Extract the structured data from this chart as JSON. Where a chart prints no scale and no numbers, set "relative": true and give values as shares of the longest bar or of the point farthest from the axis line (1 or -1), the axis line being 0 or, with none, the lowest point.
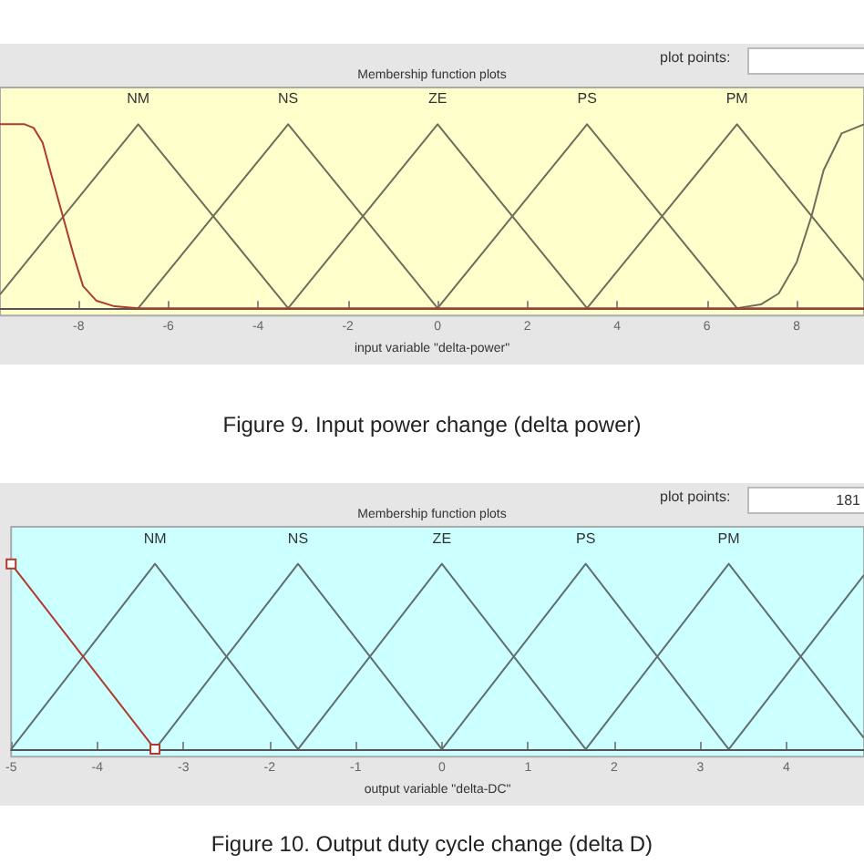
{
  "chart_data": [
    {
      "type": "line",
      "title": "Membership function plots",
      "xlabel": "input variable \"delta-power\"",
      "annotations": [
        "plot points:",
        "Figure 9. Input power change (delta power)"
      ],
      "relative": true,
      "xlim": [
        -9.75,
        9.5
      ],
      "xticks": [
        -8,
        -6,
        -4,
        -2,
        0,
        2,
        4,
        6,
        8
      ],
      "tick_labels": "x",
      "grid": false,
      "legend": false,
      "marker": "none",
      "line_style": "solid",
      "series": [
        {
          "color": "#b03a2e",
          "x": [
            -9.75,
            -9.2,
            -9,
            -8.8,
            -8.6,
            -8.35,
            -8.1,
            -7.9,
            -7.6,
            -7.2,
            -6.67,
            9.5
          ],
          "values": [
            1,
            1,
            0.98,
            0.9,
            0.72,
            0.5,
            0.28,
            0.12,
            0.04,
            0.01,
            0,
            0
          ]
        },
        {
          "name": "NM",
          "color": "#6e6e5c",
          "x": [
            -9.75,
            -6.67,
            -3.33
          ],
          "values": [
            0.075,
            1,
            0
          ]
        },
        {
          "name": "NS",
          "color": "#6e6e5c",
          "x": [
            -6.67,
            -3.33,
            0
          ],
          "values": [
            0,
            1,
            0
          ]
        },
        {
          "name": "ZE",
          "color": "#6e6e5c",
          "x": [
            -3.33,
            0,
            3.33
          ],
          "values": [
            0,
            1,
            0
          ]
        },
        {
          "name": "PS",
          "color": "#6e6e5c",
          "x": [
            0,
            3.33,
            6.67
          ],
          "values": [
            0,
            1,
            0
          ]
        },
        {
          "name": "PM",
          "color": "#6e6e5c",
          "x": [
            3.33,
            6.67,
            9.5
          ],
          "values": [
            0,
            1,
            0.15
          ]
        },
        {
          "color": "#6e6e5c",
          "x": [
            6.67,
            7.2,
            7.6,
            8,
            8.33,
            8.6,
            9,
            9.5
          ],
          "values": [
            0,
            0.02,
            0.08,
            0.25,
            0.5,
            0.75,
            0.95,
            1
          ]
        }
      ]
    },
    {
      "type": "line",
      "title": "Membership function plots",
      "xlabel": "output variable \"delta-DC\"",
      "annotations": [
        "plot points:",
        "181",
        "Figure 10. Output duty cycle change (delta D)"
      ],
      "relative": true,
      "xlim": [
        -5,
        4.9
      ],
      "xticks": [
        -5,
        -4,
        -3,
        -2,
        -1,
        0,
        1,
        2,
        3,
        4
      ],
      "tick_labels": "x",
      "grid": false,
      "legend": false,
      "line_style": "solid",
      "series": [
        {
          "color": "#b03a2e",
          "marker": "square",
          "x": [
            -5,
            -3.33
          ],
          "values": [
            1,
            0
          ]
        },
        {
          "name": "NM",
          "color": "#5f6e6e",
          "x": [
            -5,
            -3.33,
            -1.67
          ],
          "values": [
            0,
            1,
            0
          ]
        },
        {
          "name": "NS",
          "color": "#5f6e6e",
          "x": [
            -3.33,
            -1.67,
            0
          ],
          "values": [
            0,
            1,
            0
          ]
        },
        {
          "name": "ZE",
          "color": "#5f6e6e",
          "x": [
            -1.67,
            0,
            1.67
          ],
          "values": [
            0,
            1,
            0
          ]
        },
        {
          "name": "PS",
          "color": "#5f6e6e",
          "x": [
            0,
            1.67,
            3.33
          ],
          "values": [
            0,
            1,
            0
          ]
        },
        {
          "name": "PM",
          "color": "#5f6e6e",
          "x": [
            1.67,
            3.33,
            4.9
          ],
          "values": [
            0,
            1,
            0.06
          ]
        },
        {
          "color": "#5f6e6e",
          "x": [
            3.33,
            4.9
          ],
          "values": [
            0,
            0.94
          ]
        }
      ]
    }
  ]
}
